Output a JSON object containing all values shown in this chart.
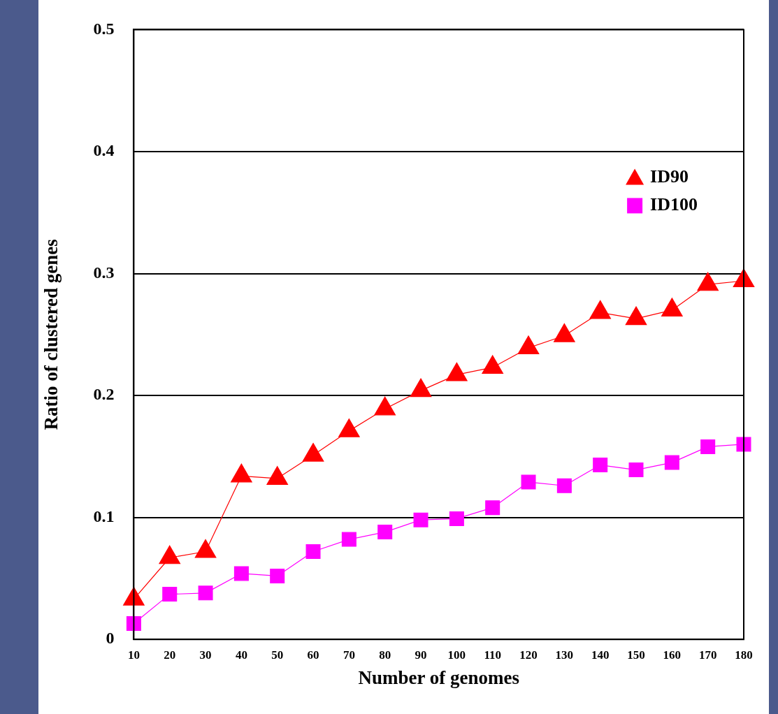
{
  "chart_data": {
    "type": "line",
    "xlabel": "Number of genomes",
    "ylabel": "Ratio of clustered genes",
    "categories": [
      "10",
      "20",
      "30",
      "40",
      "50",
      "60",
      "70",
      "80",
      "90",
      "100",
      "110",
      "120",
      "130",
      "140",
      "150",
      "160",
      "170",
      "180"
    ],
    "series": [
      {
        "name": "ID90",
        "color": "#ff0000",
        "marker": "triangle",
        "values": [
          0.033,
          0.067,
          0.072,
          0.134,
          0.132,
          0.151,
          0.171,
          0.189,
          0.204,
          0.217,
          0.223,
          0.239,
          0.249,
          0.268,
          0.263,
          0.27,
          0.291,
          0.294
        ]
      },
      {
        "name": "ID100",
        "color": "#ff00ff",
        "marker": "square",
        "values": [
          0.013,
          0.037,
          0.038,
          0.054,
          0.052,
          0.072,
          0.082,
          0.088,
          0.098,
          0.099,
          0.108,
          0.129,
          0.126,
          0.143,
          0.139,
          0.145,
          0.158,
          0.16
        ]
      }
    ],
    "ylim": [
      0,
      0.5
    ],
    "yticks": [
      0,
      0.1,
      0.2,
      0.3,
      0.4,
      0.5
    ],
    "grid": "y",
    "legend": "top right",
    "line_style": "solid"
  }
}
